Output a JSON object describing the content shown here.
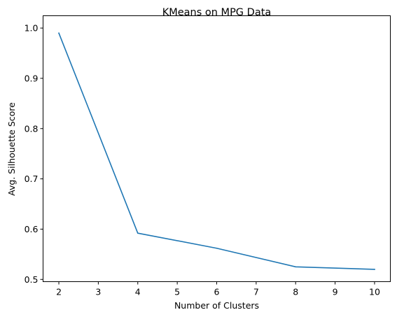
{
  "chart_data": {
    "type": "line",
    "title": "KMeans on MPG Data",
    "xlabel": "Number of Clusters",
    "ylabel": "Avg. Silhouette Score",
    "x": [
      2,
      4,
      6,
      8,
      10
    ],
    "series": [
      {
        "values": [
          0.99,
          0.592,
          0.562,
          0.525,
          0.52
        ],
        "color": "#1f77b4"
      }
    ],
    "xlim": [
      1.6,
      10.4
    ],
    "ylim": [
      0.4955,
      1.0245
    ],
    "xticks": [
      2,
      3,
      4,
      5,
      6,
      7,
      8,
      9,
      10
    ],
    "yticks": [
      0.5,
      0.6,
      0.7,
      0.8,
      0.9,
      1.0
    ],
    "ytick_labels": [
      "0.5",
      "0.6",
      "0.7",
      "0.8",
      "0.9",
      "1.0"
    ],
    "grid": false,
    "legend": false
  }
}
